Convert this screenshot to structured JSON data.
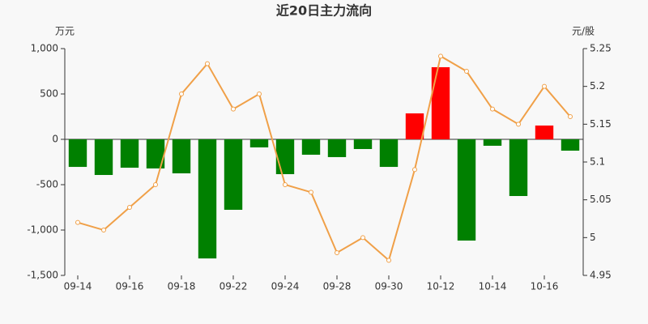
{
  "chart_data": {
    "type": "bar-line",
    "title": "近20日主力流向",
    "y_label": "万元",
    "y2_label": "元/股",
    "categories": [
      "09-14",
      null,
      "09-16",
      null,
      "09-18",
      null,
      "09-22",
      null,
      "09-24",
      null,
      "09-28",
      null,
      "09-30",
      null,
      "10-12",
      null,
      "10-14",
      null,
      "10-16",
      null
    ],
    "series": [
      {
        "type": "bar",
        "positive_color": "#ff0000",
        "negative_color": "#008000",
        "values": [
          -304,
          -393,
          -313,
          -321,
          -375,
          -1313,
          -777,
          -89,
          -384,
          -170,
          -196,
          -107,
          -304,
          286,
          795,
          -1116,
          -71,
          -625,
          152,
          -125
        ]
      },
      {
        "type": "line",
        "axis": "y2",
        "color": "#f0a048",
        "values": [
          5.02,
          5.01,
          5.04,
          5.07,
          5.19,
          5.23,
          5.17,
          5.19,
          5.07,
          5.06,
          4.98,
          5.0,
          4.97,
          5.09,
          5.24,
          5.22,
          5.17,
          5.15,
          5.2,
          5.16
        ]
      }
    ],
    "ylim": [
      -1500,
      1000
    ],
    "yticks": [
      {
        "value": -1500,
        "label": "-1,500"
      },
      {
        "value": -1000,
        "label": "-1,000"
      },
      -500,
      0,
      500,
      {
        "value": 1000,
        "label": "1,000"
      }
    ],
    "y2lim": [
      4.95,
      5.25
    ],
    "y2ticks": [
      4.95,
      5,
      5.05,
      5.1,
      5.15,
      5.2,
      5.25
    ]
  }
}
